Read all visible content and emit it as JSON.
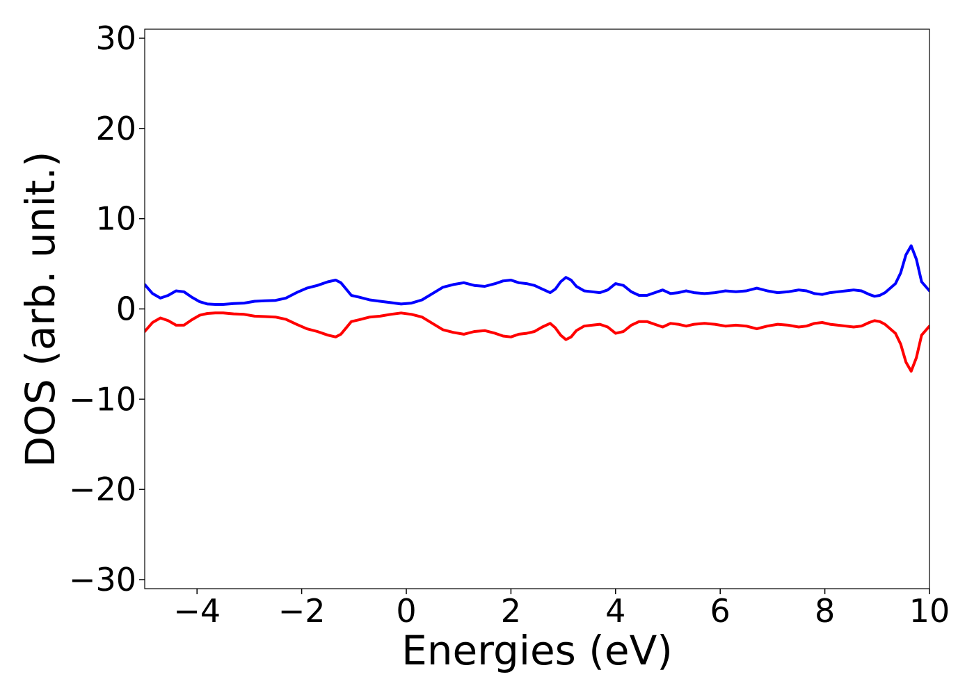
{
  "chart_data": {
    "type": "line",
    "title": "",
    "xlabel": "Energies (eV)",
    "ylabel": "DOS (arb. unit.)",
    "xlim": [
      -5,
      10
    ],
    "ylim": [
      -31,
      31
    ],
    "grid": false,
    "legend": "none",
    "x_ticks": [
      -4,
      -2,
      0,
      2,
      4,
      6,
      8,
      10
    ],
    "x_tick_labels": [
      "−4",
      "−2",
      "0",
      "2",
      "4",
      "6",
      "8",
      "10"
    ],
    "y_ticks": [
      -30,
      -20,
      -10,
      0,
      10,
      20,
      30
    ],
    "y_tick_labels": [
      "−30",
      "−20",
      "−10",
      "0",
      "10",
      "20",
      "30"
    ],
    "series": [
      {
        "color": "#0000ff",
        "x": [
          -5.0,
          -4.85,
          -4.7,
          -4.55,
          -4.4,
          -4.25,
          -4.1,
          -3.95,
          -3.8,
          -3.65,
          -3.5,
          -3.3,
          -3.1,
          -2.9,
          -2.7,
          -2.5,
          -2.3,
          -2.1,
          -1.9,
          -1.7,
          -1.5,
          -1.35,
          -1.25,
          -1.15,
          -1.05,
          -0.9,
          -0.7,
          -0.5,
          -0.3,
          -0.1,
          0.1,
          0.3,
          0.5,
          0.7,
          0.9,
          1.1,
          1.3,
          1.5,
          1.7,
          1.85,
          2.0,
          2.15,
          2.3,
          2.45,
          2.6,
          2.75,
          2.85,
          2.95,
          3.05,
          3.15,
          3.25,
          3.4,
          3.55,
          3.7,
          3.85,
          4.0,
          4.15,
          4.3,
          4.45,
          4.6,
          4.75,
          4.9,
          5.05,
          5.2,
          5.35,
          5.5,
          5.7,
          5.9,
          6.1,
          6.3,
          6.5,
          6.7,
          6.9,
          7.1,
          7.3,
          7.5,
          7.65,
          7.8,
          7.95,
          8.1,
          8.25,
          8.4,
          8.55,
          8.7,
          8.85,
          8.95,
          9.05,
          9.15,
          9.25,
          9.35,
          9.45,
          9.55,
          9.65,
          9.75,
          9.85,
          10.0
        ],
        "y": [
          2.7,
          1.7,
          1.2,
          1.5,
          2.0,
          1.9,
          1.3,
          0.8,
          0.55,
          0.5,
          0.5,
          0.6,
          0.65,
          0.85,
          0.9,
          0.95,
          1.2,
          1.8,
          2.3,
          2.6,
          3.0,
          3.2,
          2.9,
          2.2,
          1.5,
          1.3,
          1.0,
          0.85,
          0.7,
          0.55,
          0.65,
          1.0,
          1.7,
          2.4,
          2.7,
          2.9,
          2.6,
          2.5,
          2.8,
          3.1,
          3.2,
          2.9,
          2.8,
          2.6,
          2.2,
          1.8,
          2.2,
          3.0,
          3.5,
          3.2,
          2.5,
          2.0,
          1.9,
          1.8,
          2.1,
          2.8,
          2.6,
          1.9,
          1.5,
          1.5,
          1.8,
          2.1,
          1.7,
          1.8,
          2.0,
          1.8,
          1.7,
          1.8,
          2.0,
          1.9,
          2.0,
          2.3,
          2.0,
          1.8,
          1.9,
          2.1,
          2.0,
          1.7,
          1.6,
          1.8,
          1.9,
          2.0,
          2.1,
          2.0,
          1.6,
          1.4,
          1.5,
          1.8,
          2.3,
          2.8,
          4.0,
          6.0,
          7.0,
          5.5,
          3.0,
          2.0
        ]
      },
      {
        "color": "#ff0000",
        "x": [
          -5.0,
          -4.85,
          -4.7,
          -4.55,
          -4.4,
          -4.25,
          -4.1,
          -3.95,
          -3.8,
          -3.65,
          -3.5,
          -3.3,
          -3.1,
          -2.9,
          -2.7,
          -2.5,
          -2.3,
          -2.1,
          -1.9,
          -1.7,
          -1.5,
          -1.35,
          -1.25,
          -1.15,
          -1.05,
          -0.9,
          -0.7,
          -0.5,
          -0.3,
          -0.1,
          0.1,
          0.3,
          0.5,
          0.7,
          0.9,
          1.1,
          1.3,
          1.5,
          1.7,
          1.85,
          2.0,
          2.15,
          2.3,
          2.45,
          2.6,
          2.75,
          2.85,
          2.95,
          3.05,
          3.15,
          3.25,
          3.4,
          3.55,
          3.7,
          3.85,
          4.0,
          4.15,
          4.3,
          4.45,
          4.6,
          4.75,
          4.9,
          5.05,
          5.2,
          5.35,
          5.5,
          5.7,
          5.9,
          6.1,
          6.3,
          6.5,
          6.7,
          6.9,
          7.1,
          7.3,
          7.5,
          7.65,
          7.8,
          7.95,
          8.1,
          8.25,
          8.4,
          8.55,
          8.7,
          8.85,
          8.95,
          9.05,
          9.15,
          9.25,
          9.35,
          9.45,
          9.55,
          9.65,
          9.75,
          9.85,
          10.0
        ],
        "y": [
          -2.5,
          -1.5,
          -1.0,
          -1.3,
          -1.8,
          -1.8,
          -1.2,
          -0.7,
          -0.5,
          -0.45,
          -0.45,
          -0.55,
          -0.6,
          -0.8,
          -0.85,
          -0.9,
          -1.15,
          -1.7,
          -2.2,
          -2.5,
          -2.9,
          -3.1,
          -2.8,
          -2.1,
          -1.4,
          -1.2,
          -0.9,
          -0.8,
          -0.6,
          -0.45,
          -0.6,
          -0.9,
          -1.6,
          -2.3,
          -2.6,
          -2.8,
          -2.5,
          -2.4,
          -2.7,
          -3.0,
          -3.1,
          -2.8,
          -2.7,
          -2.5,
          -2.0,
          -1.6,
          -2.1,
          -2.9,
          -3.4,
          -3.1,
          -2.4,
          -1.9,
          -1.8,
          -1.7,
          -2.0,
          -2.7,
          -2.5,
          -1.8,
          -1.4,
          -1.4,
          -1.7,
          -2.0,
          -1.6,
          -1.7,
          -1.9,
          -1.7,
          -1.6,
          -1.7,
          -1.9,
          -1.8,
          -1.9,
          -2.2,
          -1.9,
          -1.7,
          -1.8,
          -2.0,
          -1.9,
          -1.6,
          -1.5,
          -1.7,
          -1.8,
          -1.9,
          -2.0,
          -1.9,
          -1.5,
          -1.3,
          -1.4,
          -1.7,
          -2.2,
          -2.7,
          -3.9,
          -5.9,
          -6.9,
          -5.4,
          -2.9,
          -1.9
        ]
      }
    ]
  }
}
